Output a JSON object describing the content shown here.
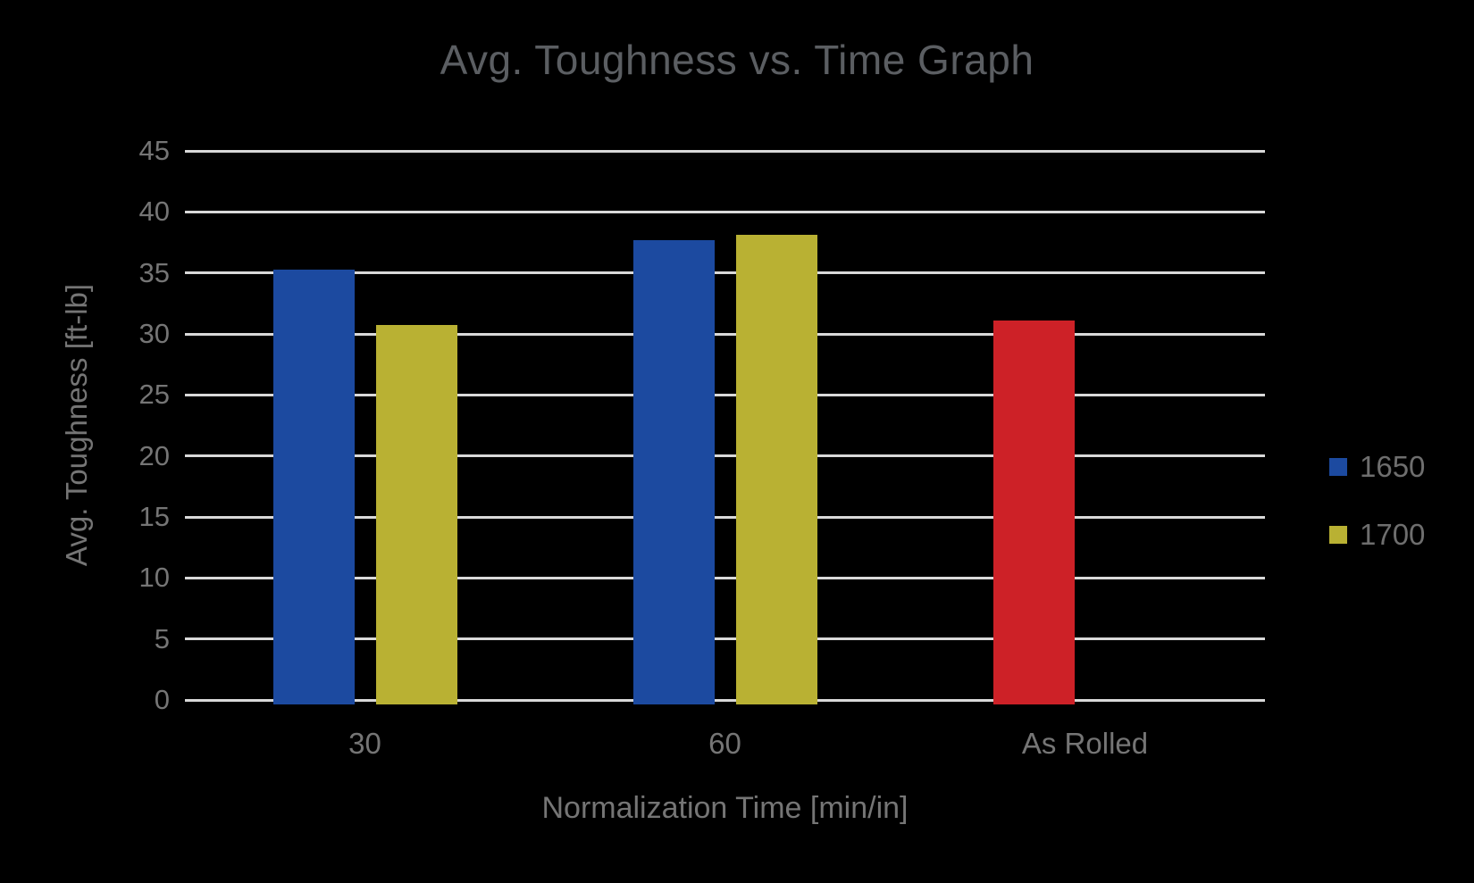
{
  "chart_data": {
    "type": "bar",
    "title": "Avg. Toughness vs. Time Graph",
    "xlabel": "Normalization Time [min/in]",
    "ylabel": "Avg. Toughness [ft-lb]",
    "categories": [
      "30",
      "60",
      "As Rolled"
    ],
    "series": [
      {
        "name": "1650",
        "color": "#1C4AA0",
        "in_legend": true,
        "slot": 0,
        "values": [
          35.3,
          37.7,
          null
        ]
      },
      {
        "name": "1700",
        "color": "#B9B133",
        "in_legend": true,
        "slot": 1,
        "values": [
          30.7,
          38.1,
          null
        ]
      },
      {
        "name": "As Rolled",
        "color": "#CD2127",
        "in_legend": false,
        "slot": 0,
        "values": [
          null,
          null,
          31.1
        ]
      }
    ],
    "ylim": [
      0,
      45
    ],
    "yticks": [
      0,
      5,
      10,
      15,
      20,
      25,
      30,
      35,
      40,
      45
    ],
    "grid": "horizontal",
    "gridlines_behind_bars": true,
    "legend_position": "right"
  },
  "colors": {
    "background": "#000000",
    "gridline": "#D9D9D9",
    "axis_text": "#757575",
    "title_text": "#5B5E62",
    "legend_text": "#6E6E6E"
  }
}
